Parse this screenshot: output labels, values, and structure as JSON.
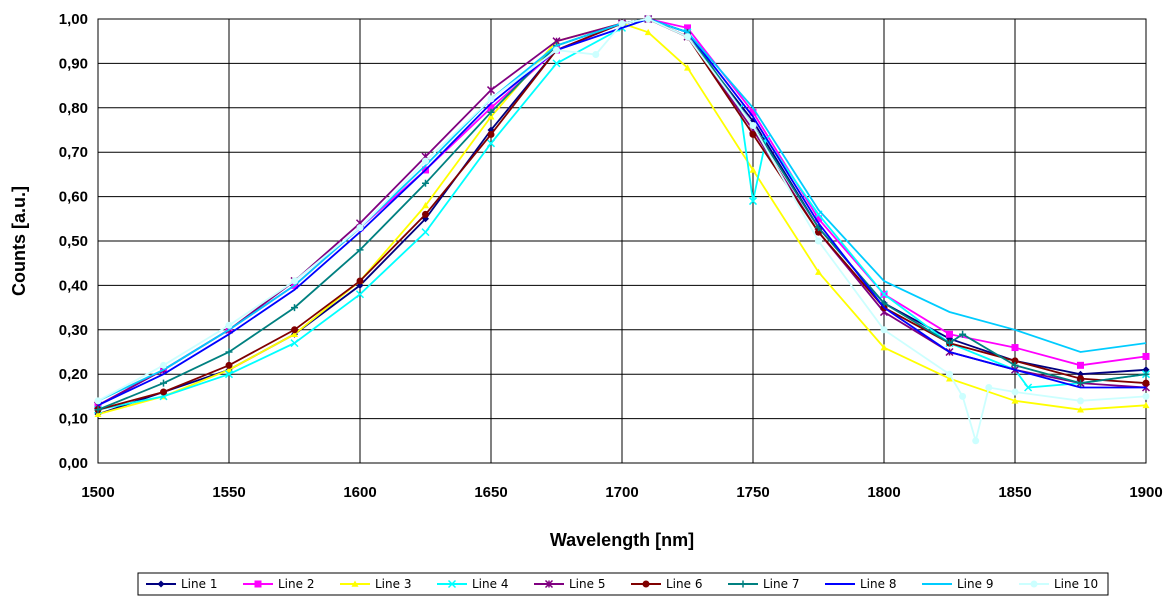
{
  "chart_data": {
    "type": "line",
    "title": "",
    "xlabel": "Wavelength [nm]",
    "ylabel": "Counts [a.u.]",
    "xlim": [
      1500,
      1900
    ],
    "ylim": [
      0,
      1
    ],
    "x_ticks": [
      1500,
      1550,
      1600,
      1650,
      1700,
      1750,
      1800,
      1850,
      1900
    ],
    "x_tick_labels": [
      "1500",
      "1550",
      "1600",
      "1650",
      "1700",
      "1750",
      "1800",
      "1850",
      "1900"
    ],
    "y_ticks": [
      0,
      0.1,
      0.2,
      0.3,
      0.4,
      0.5,
      0.6,
      0.7,
      0.8,
      0.9,
      1.0
    ],
    "y_tick_labels": [
      "0,00",
      "0,10",
      "0,20",
      "0,30",
      "0,40",
      "0,50",
      "0,60",
      "0,70",
      "0,80",
      "0,90",
      "1,00"
    ],
    "grid": true,
    "legend_position": "bottom",
    "series": [
      {
        "name": "Line 1",
        "color": "#000080",
        "marker": "diamond",
        "x": [
          1500,
          1525,
          1550,
          1575,
          1600,
          1625,
          1650,
          1675,
          1700,
          1710,
          1725,
          1750,
          1775,
          1800,
          1825,
          1850,
          1875,
          1900
        ],
        "y": [
          0.11,
          0.16,
          0.21,
          0.29,
          0.4,
          0.55,
          0.75,
          0.93,
          0.99,
          1.0,
          0.96,
          0.77,
          0.53,
          0.36,
          0.28,
          0.23,
          0.2,
          0.21
        ]
      },
      {
        "name": "Line 2",
        "color": "#FF00FF",
        "marker": "square",
        "x": [
          1500,
          1525,
          1550,
          1575,
          1600,
          1625,
          1650,
          1675,
          1700,
          1710,
          1725,
          1750,
          1775,
          1800,
          1825,
          1850,
          1875,
          1900
        ],
        "y": [
          0.13,
          0.21,
          0.3,
          0.4,
          0.53,
          0.66,
          0.8,
          0.93,
          0.99,
          1.0,
          0.98,
          0.79,
          0.55,
          0.38,
          0.29,
          0.26,
          0.22,
          0.24
        ]
      },
      {
        "name": "Line 3",
        "color": "#FFFF00",
        "marker": "triangle",
        "x": [
          1500,
          1525,
          1550,
          1575,
          1600,
          1625,
          1650,
          1675,
          1700,
          1710,
          1725,
          1750,
          1775,
          1800,
          1825,
          1850,
          1875,
          1900
        ],
        "y": [
          0.11,
          0.15,
          0.21,
          0.29,
          0.41,
          0.58,
          0.78,
          0.95,
          0.99,
          0.97,
          0.89,
          0.66,
          0.43,
          0.26,
          0.19,
          0.14,
          0.12,
          0.13
        ]
      },
      {
        "name": "Line 4",
        "color": "#00FFFF",
        "marker": "x",
        "x": [
          1500,
          1525,
          1550,
          1575,
          1600,
          1625,
          1650,
          1675,
          1700,
          1710,
          1725,
          1745,
          1750,
          1755,
          1775,
          1800,
          1825,
          1850,
          1855,
          1875,
          1900
        ],
        "y": [
          0.12,
          0.15,
          0.2,
          0.27,
          0.38,
          0.52,
          0.72,
          0.9,
          0.98,
          1.0,
          0.97,
          0.8,
          0.59,
          0.73,
          0.56,
          0.38,
          0.27,
          0.21,
          0.17,
          0.18,
          0.2
        ]
      },
      {
        "name": "Line 5",
        "color": "#800080",
        "marker": "asterisk",
        "x": [
          1500,
          1525,
          1550,
          1575,
          1600,
          1625,
          1650,
          1675,
          1700,
          1710,
          1725,
          1750,
          1775,
          1800,
          1825,
          1850,
          1875,
          1900
        ],
        "y": [
          0.13,
          0.21,
          0.3,
          0.41,
          0.54,
          0.69,
          0.84,
          0.95,
          0.99,
          1.0,
          0.96,
          0.75,
          0.52,
          0.34,
          0.25,
          0.21,
          0.18,
          0.17
        ]
      },
      {
        "name": "Line 6",
        "color": "#800000",
        "marker": "circle",
        "x": [
          1500,
          1525,
          1550,
          1575,
          1600,
          1625,
          1650,
          1675,
          1700,
          1710,
          1725,
          1750,
          1775,
          1800,
          1825,
          1850,
          1875,
          1900
        ],
        "y": [
          0.12,
          0.16,
          0.22,
          0.3,
          0.41,
          0.56,
          0.74,
          0.93,
          0.99,
          1.0,
          0.96,
          0.74,
          0.52,
          0.35,
          0.27,
          0.23,
          0.19,
          0.18
        ]
      },
      {
        "name": "Line 7",
        "color": "#008080",
        "marker": "plus",
        "x": [
          1500,
          1525,
          1550,
          1575,
          1600,
          1625,
          1650,
          1675,
          1700,
          1710,
          1725,
          1750,
          1775,
          1800,
          1825,
          1830,
          1850,
          1875,
          1900
        ],
        "y": [
          0.12,
          0.18,
          0.25,
          0.35,
          0.48,
          0.63,
          0.79,
          0.94,
          0.99,
          1.0,
          0.97,
          0.76,
          0.53,
          0.36,
          0.27,
          0.29,
          0.22,
          0.18,
          0.2
        ]
      },
      {
        "name": "Line 8",
        "color": "#0000FF",
        "marker": "none",
        "x": [
          1500,
          1525,
          1550,
          1575,
          1600,
          1625,
          1650,
          1675,
          1700,
          1710,
          1725,
          1750,
          1775,
          1800,
          1825,
          1850,
          1875,
          1900
        ],
        "y": [
          0.13,
          0.2,
          0.29,
          0.39,
          0.52,
          0.66,
          0.81,
          0.93,
          0.98,
          1.0,
          0.97,
          0.78,
          0.54,
          0.35,
          0.25,
          0.21,
          0.17,
          0.17
        ]
      },
      {
        "name": "Line 9",
        "color": "#00CCFF",
        "marker": "none",
        "x": [
          1500,
          1525,
          1550,
          1575,
          1600,
          1625,
          1650,
          1675,
          1700,
          1710,
          1725,
          1750,
          1775,
          1800,
          1825,
          1850,
          1875,
          1900
        ],
        "y": [
          0.14,
          0.21,
          0.3,
          0.4,
          0.53,
          0.67,
          0.82,
          0.94,
          0.99,
          1.0,
          0.97,
          0.8,
          0.57,
          0.41,
          0.34,
          0.3,
          0.25,
          0.27
        ]
      },
      {
        "name": "Line 10",
        "color": "#CCFFFF",
        "marker": "circle",
        "x": [
          1500,
          1525,
          1550,
          1575,
          1600,
          1625,
          1650,
          1675,
          1690,
          1700,
          1710,
          1725,
          1750,
          1775,
          1800,
          1825,
          1830,
          1835,
          1840,
          1850,
          1875,
          1900
        ],
        "y": [
          0.14,
          0.22,
          0.31,
          0.41,
          0.53,
          0.68,
          0.82,
          0.93,
          0.92,
          0.99,
          1.0,
          0.96,
          0.76,
          0.5,
          0.3,
          0.2,
          0.15,
          0.05,
          0.17,
          0.16,
          0.14,
          0.15
        ]
      }
    ]
  }
}
